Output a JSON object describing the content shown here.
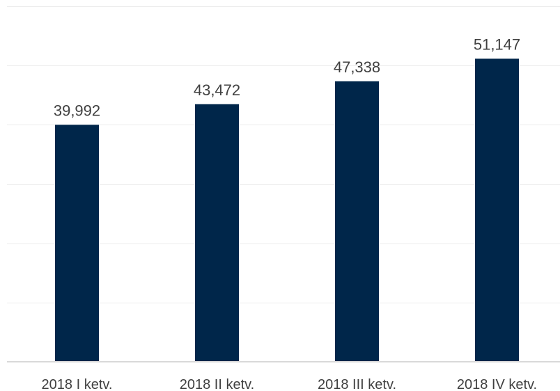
{
  "chart_data": {
    "type": "bar",
    "categories": [
      "2018 I ketv.",
      "2018 II ketv.",
      "2018 III ketv.",
      "2018 IV ketv."
    ],
    "values": [
      39.992,
      43.472,
      47.338,
      51.147
    ],
    "data_labels": [
      "39,992",
      "43,472",
      "47,338",
      "51,147"
    ],
    "title": "",
    "xlabel": "",
    "ylabel": "",
    "ylim": [
      0,
      60
    ],
    "grid_step": 10,
    "grid": true,
    "legend": "none",
    "bar_color": "#00264a"
  }
}
